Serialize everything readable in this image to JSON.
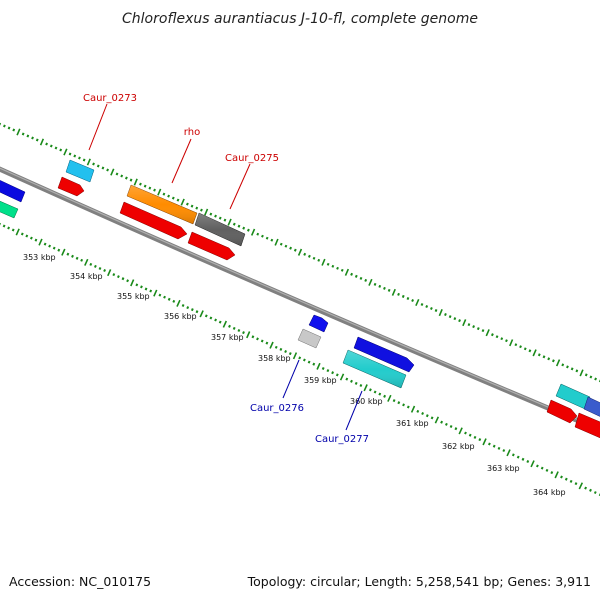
{
  "title": "Chloroflexus aurantiacus J-10-fl, complete genome",
  "footer": {
    "accession": "Accession: NC_010175",
    "summary": "Topology: circular; Length: 5,258,541 bp; Genes: 3,911"
  },
  "colors": {
    "backbone": "#808080",
    "tick_forward": "#1a8a1a",
    "tick_reverse": "#1a8a1a",
    "label_forward": "#cc0000",
    "label_reverse": "#0000aa"
  },
  "scale_labels": [
    "353 kbp",
    "354 kbp",
    "355 kbp",
    "356 kbp",
    "357 kbp",
    "358 kbp",
    "359 kbp",
    "360 kbp",
    "361 kbp",
    "362 kbp",
    "363 kbp",
    "364 kbp"
  ],
  "gene_labels": [
    {
      "text": "Caur_0273",
      "strand": "forward"
    },
    {
      "text": "rho",
      "strand": "forward"
    },
    {
      "text": "Caur_0275",
      "strand": "forward"
    },
    {
      "text": "Caur_0276",
      "strand": "reverse"
    },
    {
      "text": "Caur_0277",
      "strand": "reverse"
    }
  ],
  "features": [
    {
      "name": "feature-blue-left",
      "color": "#0a0adf"
    },
    {
      "name": "feature-green-left",
      "color": "#00e08a"
    },
    {
      "name": "feature-caur0273-cyan",
      "color": "#22c0ee"
    },
    {
      "name": "feature-caur0273-red",
      "color": "#ee0000"
    },
    {
      "name": "feature-rho-orange",
      "color": "#ff8c00"
    },
    {
      "name": "feature-rho-red",
      "color": "#ee0000"
    },
    {
      "name": "feature-caur0275-gray",
      "color": "#606060"
    },
    {
      "name": "feature-caur0275-red",
      "color": "#ee0000"
    },
    {
      "name": "feature-caur0276-blue",
      "color": "#1010ee"
    },
    {
      "name": "feature-caur0276-silver",
      "color": "#c8c8c8"
    },
    {
      "name": "feature-caur0277-blue",
      "color": "#1010e0"
    },
    {
      "name": "feature-caur0277-teal",
      "color": "#22cccc"
    },
    {
      "name": "feature-right-teal",
      "color": "#22cccc"
    },
    {
      "name": "feature-right-blue",
      "color": "#3a5ccc"
    },
    {
      "name": "feature-right-red1",
      "color": "#ee0000"
    },
    {
      "name": "feature-right-red2",
      "color": "#ee0000"
    }
  ]
}
